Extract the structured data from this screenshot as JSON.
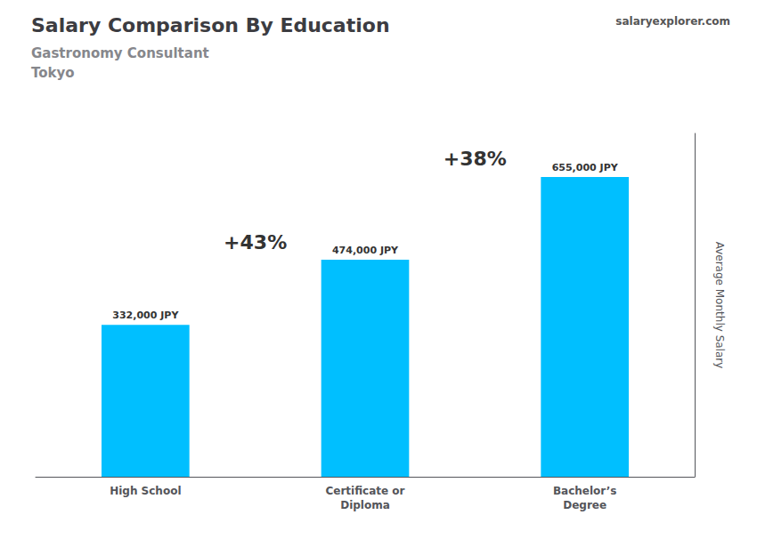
{
  "chart_data": {
    "type": "bar",
    "title": "Salary Comparison By Education",
    "subtitle": [
      "Gastronomy Consultant",
      "Tokyo"
    ],
    "watermark": [
      "salary",
      "explorer",
      ".com"
    ],
    "ylabel": "Average Monthly Salary",
    "categories": [
      "High School",
      "Certificate or\nDiploma",
      "Bachelor’s\nDegree"
    ],
    "values": [
      332000,
      474000,
      655000
    ],
    "value_labels": [
      "332,000 JPY",
      "474,000 JPY",
      "655,000 JPY"
    ],
    "data_labels": true,
    "annotations": [
      "+43%",
      "+38%"
    ],
    "color": "#00BFFF",
    "ylim": [
      0,
      750000
    ],
    "grid": false,
    "tick_labels": "x"
  }
}
